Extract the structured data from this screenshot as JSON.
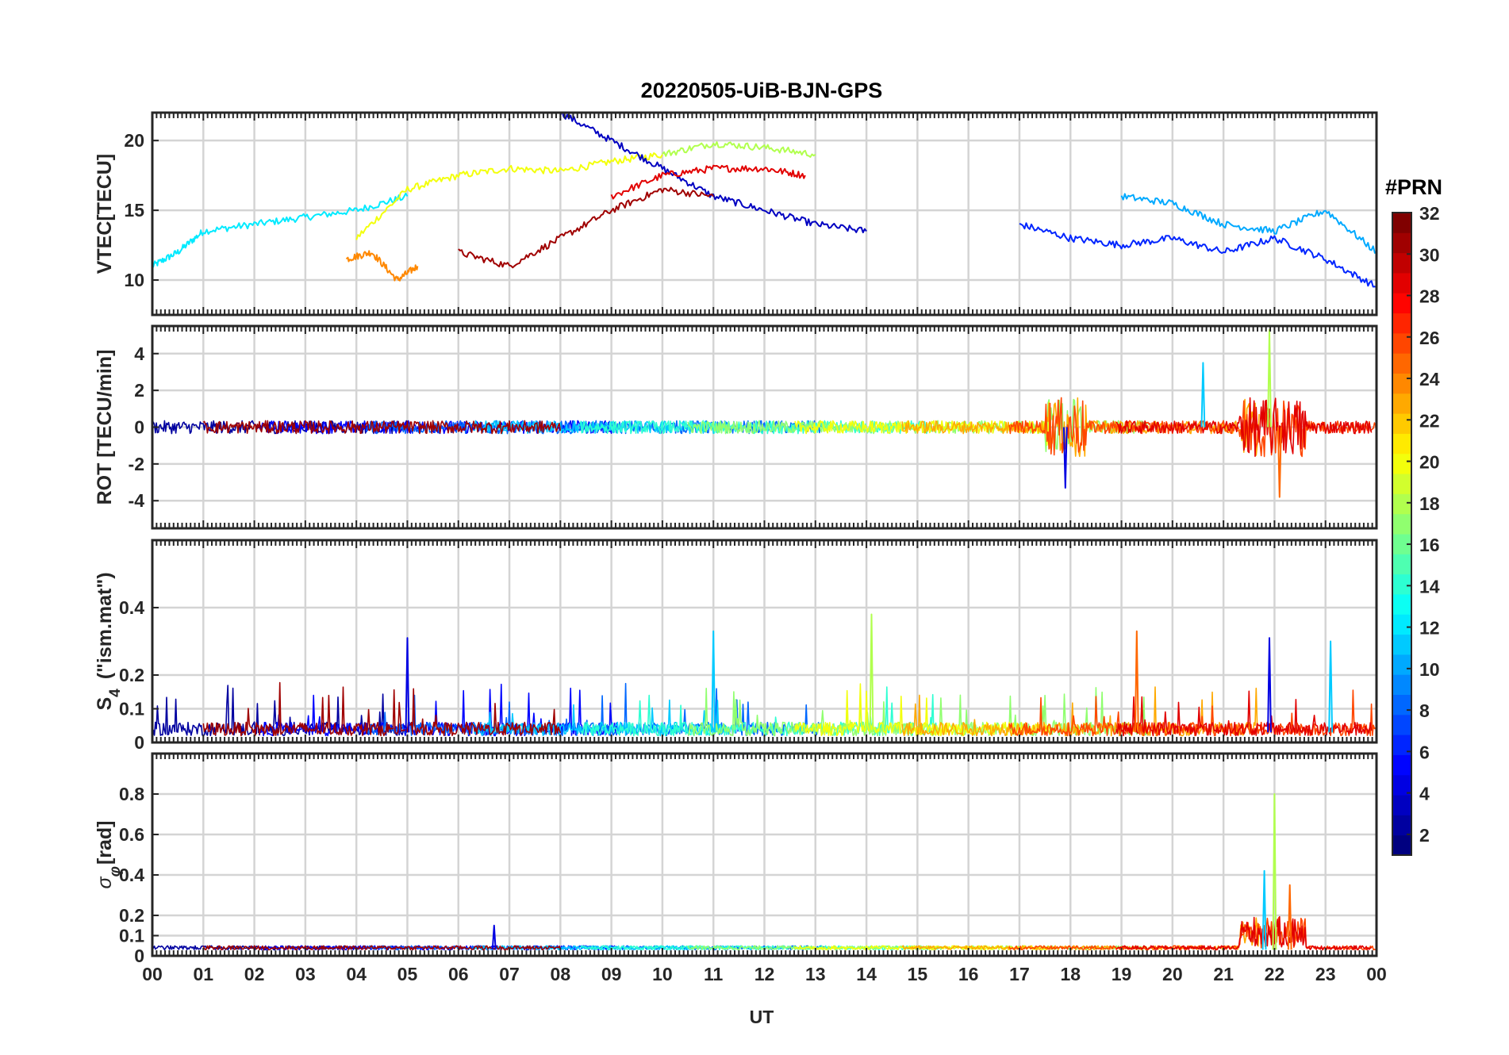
{
  "title": "20220505-UiB-BJN-GPS",
  "xlabel": "UT",
  "x_ticks": [
    "00",
    "01",
    "02",
    "03",
    "04",
    "05",
    "06",
    "07",
    "08",
    "09",
    "10",
    "11",
    "12",
    "13",
    "14",
    "15",
    "16",
    "17",
    "18",
    "19",
    "20",
    "21",
    "22",
    "23",
    "00"
  ],
  "colorbar": {
    "title": "#PRN",
    "ticks": [
      "2",
      "4",
      "6",
      "8",
      "10",
      "12",
      "14",
      "16",
      "18",
      "20",
      "22",
      "24",
      "26",
      "28",
      "30",
      "32"
    ],
    "range": [
      1,
      32
    ]
  },
  "chart_data": [
    {
      "type": "line",
      "name": "vtec",
      "ylabel": "VTEC[TECU]",
      "ylim": [
        7.5,
        22
      ],
      "xlim": [
        0,
        24
      ],
      "ytick_values": [
        10,
        15,
        20
      ],
      "ytick_labels": [
        "10",
        "15",
        "20"
      ],
      "series_note": "one line per GPS PRN (1-32), colored by PRN",
      "series": [
        {
          "prn": 12,
          "x": [
            0,
            0.5,
            1,
            2,
            3,
            4,
            5
          ],
          "y": [
            11,
            12,
            13.5,
            14,
            14.5,
            15,
            16
          ]
        },
        {
          "prn": 20,
          "x": [
            4,
            5,
            6,
            7,
            8,
            9,
            10
          ],
          "y": [
            13,
            16.5,
            17.5,
            18,
            17.8,
            18.5,
            19
          ]
        },
        {
          "prn": 24,
          "x": [
            3.8,
            4.3,
            4.8,
            5.2
          ],
          "y": [
            11.5,
            12,
            10,
            11
          ]
        },
        {
          "prn": 3,
          "x": [
            8,
            9,
            10,
            11,
            12,
            13,
            14
          ],
          "y": [
            22,
            20,
            18,
            16,
            15,
            14,
            13.5
          ]
        },
        {
          "prn": 29,
          "x": [
            9,
            10,
            11,
            12,
            12.8
          ],
          "y": [
            16,
            17.5,
            18,
            18,
            17.5
          ]
        },
        {
          "prn": 18,
          "x": [
            10,
            11,
            12,
            13
          ],
          "y": [
            19,
            19.8,
            19.5,
            19
          ]
        },
        {
          "prn": 31,
          "x": [
            6,
            7,
            8,
            9,
            10,
            11
          ],
          "y": [
            12,
            11,
            13,
            15,
            16.5,
            16
          ]
        },
        {
          "prn": 6,
          "x": [
            17,
            18,
            19,
            20,
            21,
            22,
            23,
            24
          ],
          "y": [
            14,
            13,
            12.5,
            13,
            12,
            13,
            11.5,
            9.5
          ]
        },
        {
          "prn": 10,
          "x": [
            19,
            20,
            21,
            22,
            23,
            24
          ],
          "y": [
            16,
            15.5,
            14,
            13.5,
            15,
            12
          ]
        }
      ]
    },
    {
      "type": "line",
      "name": "rot",
      "ylabel": "ROT [TECU/min]",
      "ylim": [
        -5.5,
        5.5
      ],
      "xlim": [
        0,
        24
      ],
      "ytick_values": [
        -4,
        -2,
        0,
        2,
        4
      ],
      "ytick_labels": [
        "-4",
        "-2",
        "0",
        "2",
        "4"
      ],
      "series_note": "rate of TEC per PRN; strong bursts near 18 UT and 21.5-22.5 UT",
      "peaks": [
        {
          "x": 17.9,
          "y": -3.3
        },
        {
          "x": 20.6,
          "y": 3.5
        },
        {
          "x": 21.9,
          "y": 5.3
        },
        {
          "x": 22.1,
          "y": -3.8
        }
      ]
    },
    {
      "type": "line",
      "name": "s4",
      "ylabel": "S4 (\"ism.mat\")",
      "ylabel_main": "S",
      "ylabel_sub": "4",
      "ylabel_rest": "(\"ism.mat\")",
      "ylim": [
        0,
        0.6
      ],
      "xlim": [
        0,
        24
      ],
      "ytick_values": [
        0,
        0.1,
        0.2,
        0.4
      ],
      "ytick_labels": [
        "0",
        "0.1",
        "0.2",
        "0.4"
      ],
      "peaks": [
        {
          "x": 5.0,
          "y": 0.31
        },
        {
          "x": 11.0,
          "y": 0.33
        },
        {
          "x": 14.1,
          "y": 0.38
        },
        {
          "x": 19.3,
          "y": 0.33
        },
        {
          "x": 21.9,
          "y": 0.31
        },
        {
          "x": 23.1,
          "y": 0.3
        }
      ]
    },
    {
      "type": "line",
      "name": "sigma_phi",
      "ylabel": "σφ[rad]",
      "ylabel_main": "σ",
      "ylabel_sub": "φ",
      "ylabel_rest": "[rad]",
      "ylim": [
        0,
        1
      ],
      "xlim": [
        0,
        24
      ],
      "ytick_values": [
        0,
        0.1,
        0.2,
        0.4,
        0.6,
        0.8
      ],
      "ytick_labels": [
        "0",
        "0.1",
        "0.2",
        "0.4",
        "0.6",
        "0.8"
      ],
      "peaks": [
        {
          "x": 6.7,
          "y": 0.15
        },
        {
          "x": 21.8,
          "y": 0.42
        },
        {
          "x": 22.0,
          "y": 0.8
        },
        {
          "x": 22.3,
          "y": 0.35
        }
      ]
    }
  ]
}
